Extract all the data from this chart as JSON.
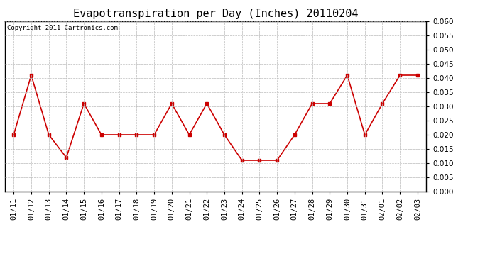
{
  "title": "Evapotranspiration per Day (Inches) 20110204",
  "copyright": "Copyright 2011 Cartronics.com",
  "dates": [
    "01/11",
    "01/12",
    "01/13",
    "01/14",
    "01/15",
    "01/16",
    "01/17",
    "01/18",
    "01/19",
    "01/20",
    "01/21",
    "01/22",
    "01/23",
    "01/24",
    "01/25",
    "01/26",
    "01/27",
    "01/28",
    "01/29",
    "01/30",
    "01/31",
    "02/01",
    "02/02",
    "02/03"
  ],
  "values": [
    0.02,
    0.041,
    0.02,
    0.012,
    0.031,
    0.02,
    0.02,
    0.02,
    0.02,
    0.031,
    0.02,
    0.031,
    0.02,
    0.011,
    0.011,
    0.011,
    0.02,
    0.031,
    0.031,
    0.041,
    0.02,
    0.031,
    0.041,
    0.041
  ],
  "ylim": [
    0.0,
    0.06
  ],
  "yticks": [
    0.0,
    0.005,
    0.01,
    0.015,
    0.02,
    0.025,
    0.03,
    0.035,
    0.04,
    0.045,
    0.05,
    0.055,
    0.06
  ],
  "line_color": "#cc0000",
  "marker": "s",
  "marker_size": 3,
  "grid_color": "#bbbbbb",
  "background_color": "#ffffff",
  "border_color": "#000000",
  "title_fontsize": 11,
  "tick_fontsize": 7.5,
  "copyright_fontsize": 6.5
}
